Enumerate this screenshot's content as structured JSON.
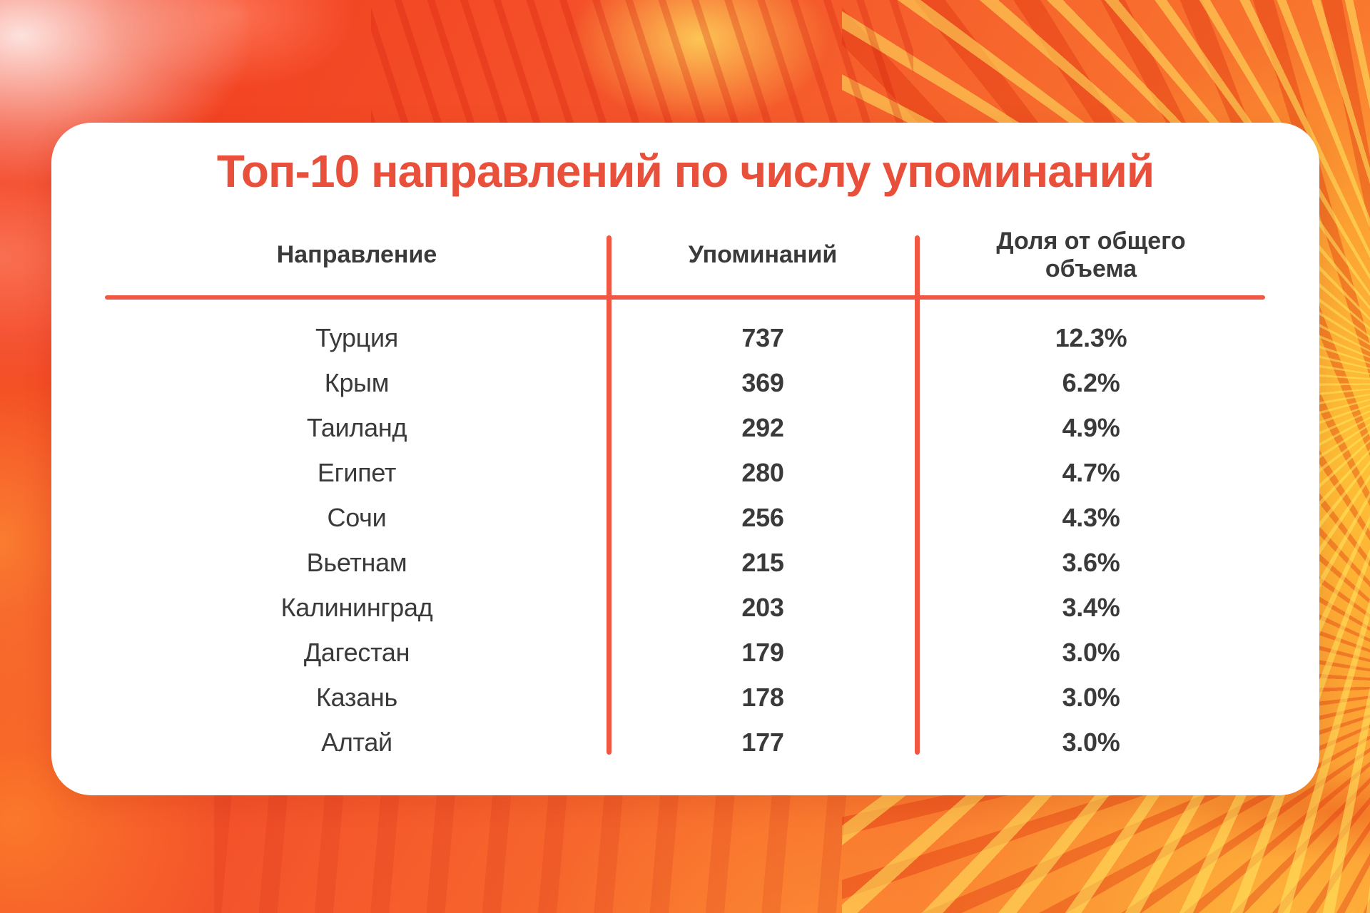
{
  "card": {
    "title": "Топ-10 направлений по числу упоминаний",
    "table": {
      "columns": [
        "Направление",
        "Упоминаний",
        "Доля от общего объема"
      ],
      "rows": [
        {
          "destination": "Турция",
          "mentions": "737",
          "share": "12.3%"
        },
        {
          "destination": "Крым",
          "mentions": "369",
          "share": "6.2%"
        },
        {
          "destination": "Таиланд",
          "mentions": "292",
          "share": "4.9%"
        },
        {
          "destination": "Египет",
          "mentions": "280",
          "share": "4.7%"
        },
        {
          "destination": "Сочи",
          "mentions": "256",
          "share": "4.3%"
        },
        {
          "destination": "Вьетнам",
          "mentions": "215",
          "share": "3.6%"
        },
        {
          "destination": "Калининград",
          "mentions": "203",
          "share": "3.4%"
        },
        {
          "destination": "Дагестан",
          "mentions": "179",
          "share": "3.0%"
        },
        {
          "destination": "Казань",
          "mentions": "178",
          "share": "3.0%"
        },
        {
          "destination": "Алтай",
          "mentions": "177",
          "share": "3.0%"
        }
      ]
    }
  },
  "colors": {
    "title_red": "#E9503B",
    "line_red": "#F25743",
    "text_dark": "#3A3A3A",
    "card_bg": "#FFFFFF",
    "background_orange": "#F4542B"
  },
  "chart_data": {
    "type": "table",
    "title": "Топ-10 направлений по числу упоминаний",
    "columns": [
      "Направление",
      "Упоминаний",
      "Доля от общего объема"
    ],
    "rows": [
      [
        "Турция",
        737,
        "12.3%"
      ],
      [
        "Крым",
        369,
        "6.2%"
      ],
      [
        "Таиланд",
        292,
        "4.9%"
      ],
      [
        "Египет",
        280,
        "4.7%"
      ],
      [
        "Сочи",
        256,
        "4.3%"
      ],
      [
        "Вьетнам",
        215,
        "3.6%"
      ],
      [
        "Калининград",
        203,
        "3.4%"
      ],
      [
        "Дагестан",
        179,
        "3.0%"
      ],
      [
        "Казань",
        178,
        "3.0%"
      ],
      [
        "Алтай",
        177,
        "3.0%"
      ]
    ]
  }
}
